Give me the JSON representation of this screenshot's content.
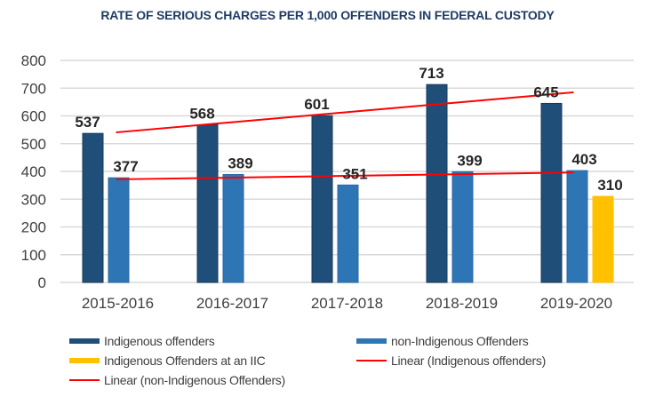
{
  "chart_data": {
    "type": "bar",
    "title": "RATE OF SERIOUS CHARGES PER 1,000 OFFENDERS IN FEDERAL CUSTODY",
    "xlabel": "",
    "ylabel": "",
    "ylim": [
      0,
      800
    ],
    "yticks": [
      0,
      100,
      200,
      300,
      400,
      500,
      600,
      700,
      800
    ],
    "grid": true,
    "legend_position": "bottom",
    "categories": [
      "2015-2016",
      "2016-2017",
      "2017-2018",
      "2018-2019",
      "2019-2020"
    ],
    "series": [
      {
        "name": "Indigenous offenders",
        "type": "bar",
        "color": "#1f4e79",
        "values": [
          537,
          568,
          601,
          713,
          645
        ]
      },
      {
        "name": "non-Indigenous Offenders",
        "type": "bar",
        "color": "#2e75b6",
        "values": [
          377,
          389,
          351,
          399,
          403
        ]
      },
      {
        "name": "Indigenous Offenders at an IIC",
        "type": "bar",
        "color": "#ffc000",
        "values": [
          null,
          null,
          null,
          null,
          310
        ]
      },
      {
        "name": "Linear (Indigenous offenders)",
        "type": "trendline",
        "color": "#ff0000",
        "of": "Indigenous offenders"
      },
      {
        "name": "Linear (non-Indigenous Offenders)",
        "type": "trendline",
        "color": "#ff0000",
        "of": "non-Indigenous Offenders"
      }
    ]
  }
}
